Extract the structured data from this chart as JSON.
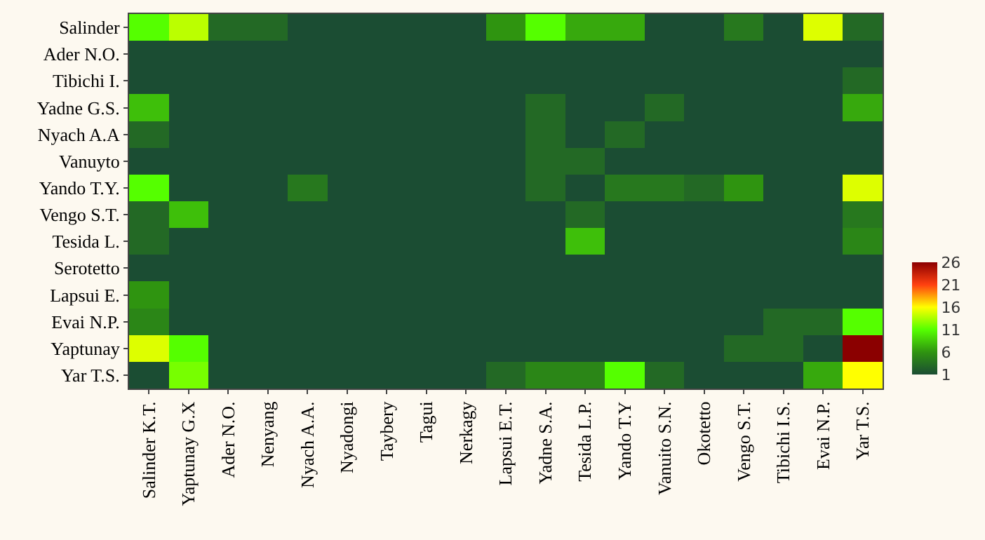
{
  "chart_data": {
    "type": "heatmap",
    "categories": [
      "Salinder K.T.",
      "Yaptunay G.X",
      "Ader N.O.",
      "Nenyang",
      "Nyach A.A.",
      "Nyadongi",
      "Taybery",
      "Tagui",
      "Nerkagy",
      "Lapsui E.T.",
      "Yadne S.A.",
      "Tesida L.P.",
      "Yando T.Y",
      "Vanuito S.N.",
      "Okotetto",
      "Vengo S.T.",
      "Tibichi I.S.",
      "Evai N.P.",
      "Yar T.S."
    ],
    "y_categories": [
      "Salinder",
      "Ader N.O.",
      "Tibichi I.",
      "Yadne G.S.",
      "Nyach A.A",
      "Vanuyto",
      "Yando T.Y.",
      "Vengo S.T.",
      "Tesida L.",
      "Serotetto",
      "Lapsui E.",
      "Evai N.P.",
      "Yaptunay",
      "Yar T.S."
    ],
    "cells": [
      [
        11,
        14,
        3,
        3,
        1,
        1,
        1,
        1,
        1,
        6,
        11,
        7,
        7,
        1,
        1,
        4,
        1,
        15,
        3
      ],
      [
        1,
        1,
        1,
        1,
        1,
        1,
        1,
        1,
        1,
        1,
        1,
        1,
        1,
        1,
        1,
        1,
        1,
        1,
        1
      ],
      [
        1,
        1,
        1,
        1,
        1,
        1,
        1,
        1,
        1,
        1,
        1,
        1,
        1,
        1,
        1,
        1,
        1,
        1,
        3
      ],
      [
        8,
        1,
        1,
        1,
        1,
        1,
        1,
        1,
        1,
        1,
        3,
        1,
        1,
        3,
        1,
        1,
        1,
        1,
        7
      ],
      [
        3,
        1,
        1,
        1,
        1,
        1,
        1,
        1,
        1,
        1,
        3,
        1,
        3,
        1,
        1,
        1,
        1,
        1,
        1
      ],
      [
        1,
        1,
        1,
        1,
        1,
        1,
        1,
        1,
        1,
        1,
        3,
        3,
        1,
        1,
        1,
        1,
        1,
        1,
        1
      ],
      [
        11,
        1,
        1,
        1,
        4,
        1,
        1,
        1,
        1,
        1,
        3,
        1,
        4,
        4,
        3,
        6,
        1,
        1,
        15
      ],
      [
        3,
        8,
        1,
        1,
        1,
        1,
        1,
        1,
        1,
        1,
        1,
        3,
        1,
        1,
        1,
        1,
        1,
        1,
        4
      ],
      [
        3,
        1,
        1,
        1,
        1,
        1,
        1,
        1,
        1,
        1,
        1,
        8,
        1,
        1,
        1,
        1,
        1,
        1,
        5
      ],
      [
        1,
        1,
        1,
        1,
        1,
        1,
        1,
        1,
        1,
        1,
        1,
        1,
        1,
        1,
        1,
        1,
        1,
        1,
        1
      ],
      [
        6,
        1,
        1,
        1,
        1,
        1,
        1,
        1,
        1,
        1,
        1,
        1,
        1,
        1,
        1,
        1,
        1,
        1,
        1
      ],
      [
        5,
        1,
        1,
        1,
        1,
        1,
        1,
        1,
        1,
        1,
        1,
        1,
        1,
        1,
        1,
        1,
        3,
        3,
        11
      ],
      [
        15,
        11,
        1,
        1,
        1,
        1,
        1,
        1,
        1,
        1,
        1,
        1,
        1,
        1,
        1,
        3,
        3,
        1,
        26
      ],
      [
        1,
        12,
        1,
        1,
        1,
        1,
        1,
        1,
        1,
        3,
        5,
        5,
        11,
        3,
        1,
        1,
        1,
        7,
        16
      ]
    ],
    "clim": [
      1,
      26
    ],
    "cticks": [
      1,
      6,
      11,
      16,
      21,
      26
    ]
  }
}
